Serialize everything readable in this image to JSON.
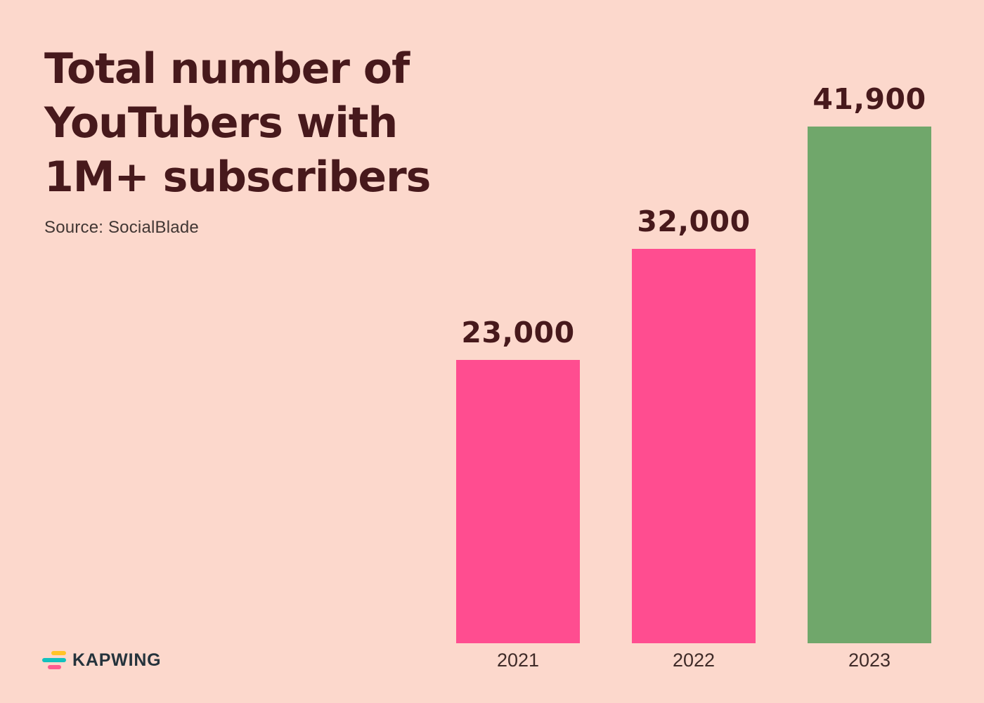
{
  "page": {
    "background_color": "#FCD8CC"
  },
  "header": {
    "title_lines": [
      "Total number of",
      "YouTubers with",
      "1M+ subscribers"
    ],
    "title_color": "#47191C",
    "source_label": "Source: SocialBlade",
    "source_color": "#413633"
  },
  "chart_data": {
    "type": "bar",
    "title": "Total number of YouTubers with 1M+ subscribers",
    "source": "SocialBlade",
    "categories": [
      "2021",
      "2022",
      "2023"
    ],
    "values": [
      23000,
      32000,
      41900
    ],
    "value_labels": [
      "23,000",
      "32,000",
      "41,900"
    ],
    "bar_colors": [
      "#FF4D90",
      "#FF4D90",
      "#70A76B"
    ],
    "value_label_color": "#47191C",
    "category_label_color": "#3F2B28",
    "xlabel": "",
    "ylabel": "",
    "ylim": [
      0,
      41900
    ],
    "grid": false,
    "legend": false,
    "orientation": "vertical"
  },
  "footer": {
    "brand_wordmark": "KAPWING",
    "brand_color": "#25333C",
    "logo_bar_colors": {
      "top": "#FFC428",
      "middle": "#12C1BE",
      "bottom": "#FF5A8F"
    }
  }
}
